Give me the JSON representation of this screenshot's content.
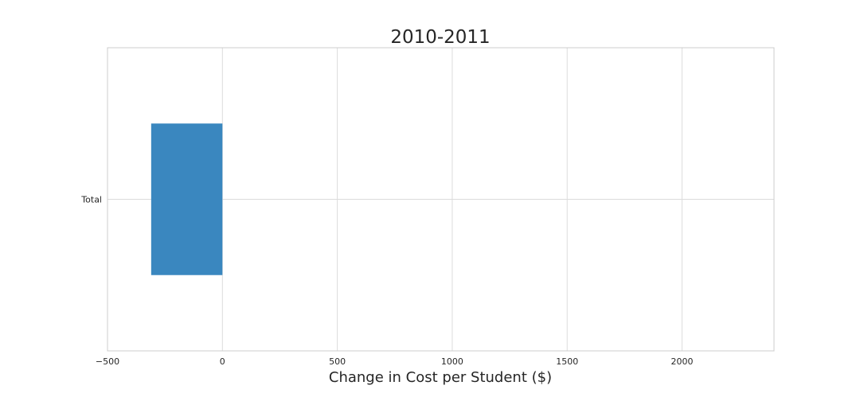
{
  "chart_data": {
    "type": "bar",
    "orientation": "horizontal",
    "title": "2010-2011",
    "xlabel": "Change in Cost per Student ($)",
    "ylabel": "",
    "categories": [
      "Total"
    ],
    "values": [
      -310
    ],
    "xlim": [
      -500,
      2400
    ],
    "x_ticks": [
      -500,
      0,
      500,
      1000,
      1500,
      2000
    ],
    "x_tick_labels": [
      "−500",
      "0",
      "500",
      "1000",
      "1500",
      "2000"
    ],
    "grid": true,
    "bar_color": "#3a87bf",
    "grid_color": "#dcdcdc",
    "axis_color": "#cccccc"
  }
}
